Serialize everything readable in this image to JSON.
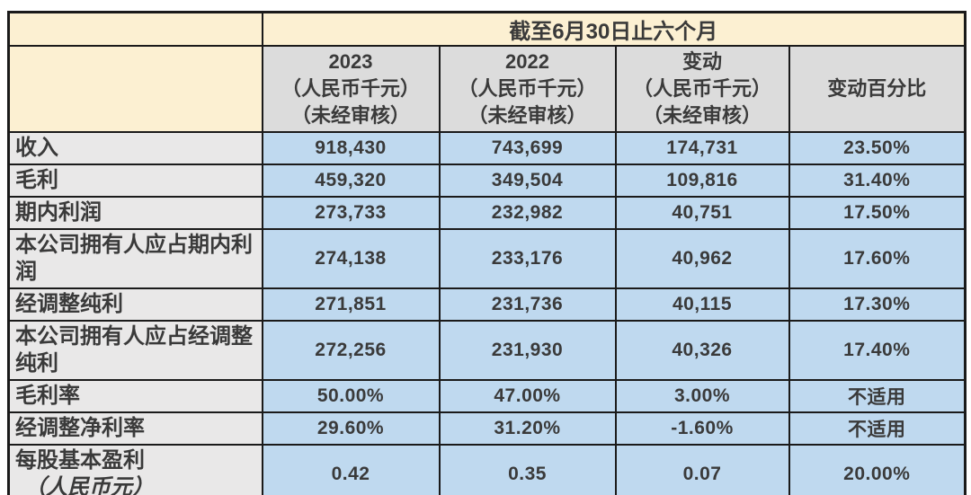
{
  "table": {
    "period_header": "截至6月30日止六个月",
    "corner_label": "",
    "col_headers": [
      "2023\n（人民币千元）\n（未经审核）",
      "2022\n（人民币千元）\n（未经审核）",
      "变动\n（人民币千元）\n（未经审核）",
      "变动百分比"
    ],
    "rows": [
      {
        "label": "收入",
        "sub_label": "",
        "values": [
          "918,430",
          "743,699",
          "174,731",
          "23.50%"
        ]
      },
      {
        "label": "毛利",
        "sub_label": "",
        "values": [
          "459,320",
          "349,504",
          "109,816",
          "31.40%"
        ]
      },
      {
        "label": "期内利润",
        "sub_label": "",
        "values": [
          "273,733",
          "232,982",
          "40,751",
          "17.50%"
        ]
      },
      {
        "label": "本公司拥有人应占期内利润",
        "sub_label": "",
        "values": [
          "274,138",
          "233,176",
          "40,962",
          "17.60%"
        ]
      },
      {
        "label": "经调整纯利",
        "sub_label": "",
        "values": [
          "271,851",
          "231,736",
          "40,115",
          "17.30%"
        ]
      },
      {
        "label": "本公司拥有人应占经调整纯利",
        "sub_label": "",
        "values": [
          "272,256",
          "231,930",
          "40,326",
          "17.40%"
        ]
      },
      {
        "label": "毛利率",
        "sub_label": "",
        "values": [
          "50.00%",
          "47.00%",
          "3.00%",
          "不适用"
        ]
      },
      {
        "label": "经调整净利率",
        "sub_label": "",
        "values": [
          "29.60%",
          "31.20%",
          "-1.60%",
          "不适用"
        ]
      },
      {
        "label": "每股基本盈利",
        "sub_label": "（人民币元）",
        "values": [
          "0.42",
          "0.35",
          "0.07",
          "20.00%"
        ]
      }
    ],
    "colors": {
      "cream": "#FCF0D2",
      "header_gray": "#DCDCDC",
      "label_gray": "#E9E8E8",
      "data_blue": "#BFD9EF",
      "text": "#3A3A3A",
      "border": "#1A1A1A"
    }
  }
}
